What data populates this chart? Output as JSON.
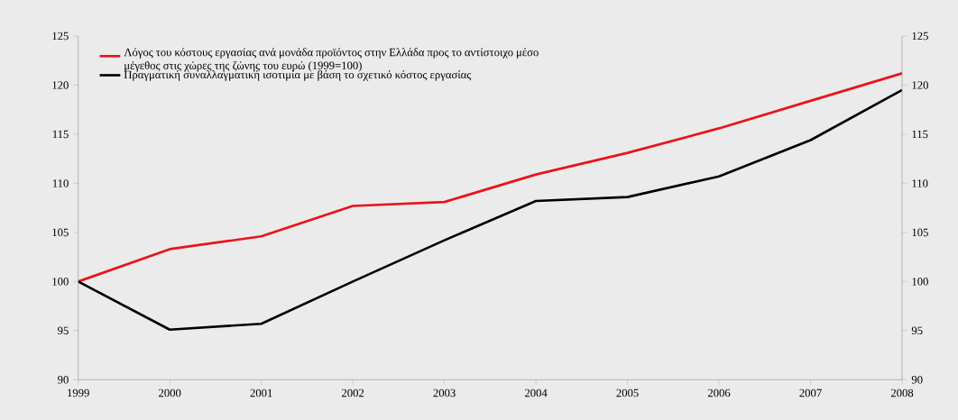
{
  "chart_data": {
    "type": "line",
    "x": [
      1999,
      2000,
      2001,
      2002,
      2003,
      2004,
      2005,
      2006,
      2007,
      2008
    ],
    "series": [
      {
        "name": "Λόγος του κόστους εργασίας ανά μονάδα προϊόντος στην Ελλάδα προς το αντίστοιχο μέσο μέγεθος στις χώρες της ζώνης του ευρώ (1999=100)",
        "color": "#e8141c",
        "values": [
          100,
          103.3,
          104.6,
          107.7,
          108.1,
          110.9,
          113.1,
          115.6,
          118.4,
          121.2
        ]
      },
      {
        "name": "Πραγματική συναλλαγματική ισοτιμία με βάση το σχετικό κόστος εργασίας",
        "color": "#000000",
        "values": [
          100,
          95.1,
          95.7,
          100,
          104.2,
          108.2,
          108.6,
          110.7,
          114.4,
          119.5
        ]
      }
    ],
    "xlim": [
      1999,
      2008
    ],
    "xticks": [
      1999,
      2000,
      2001,
      2002,
      2003,
      2004,
      2005,
      2006,
      2007,
      2008
    ],
    "ylim": [
      90,
      125
    ],
    "yticks": [
      90,
      95,
      100,
      105,
      110,
      115,
      120,
      125
    ],
    "y2lim": [
      90,
      125
    ],
    "y2ticks": [
      90,
      95,
      100,
      105,
      110,
      115,
      120,
      125
    ],
    "legend": "top left",
    "grid": false,
    "marker": "none",
    "line_style": "solid"
  }
}
